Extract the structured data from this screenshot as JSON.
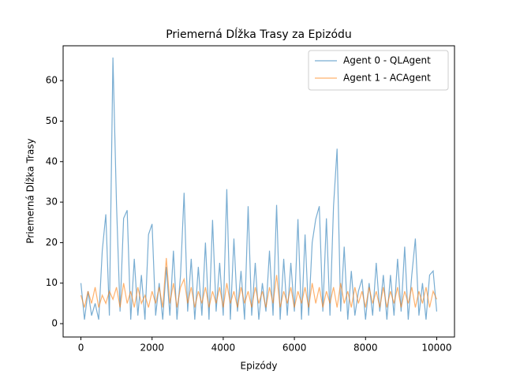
{
  "chart_data": {
    "type": "line",
    "title": "Priemerná Dĺžka Trasy za Epizódu",
    "xlabel": "Epizódy",
    "ylabel": "Priemerná Dĺžka Trasy",
    "x": [
      0,
      100,
      200,
      300,
      400,
      500,
      600,
      700,
      800,
      900,
      1000,
      1100,
      1200,
      1300,
      1400,
      1500,
      1600,
      1700,
      1800,
      1900,
      2000,
      2100,
      2200,
      2300,
      2400,
      2500,
      2600,
      2700,
      2800,
      2900,
      3000,
      3100,
      3200,
      3300,
      3400,
      3500,
      3600,
      3700,
      3800,
      3900,
      4000,
      4100,
      4200,
      4300,
      4400,
      4500,
      4600,
      4700,
      4800,
      4900,
      5000,
      5100,
      5200,
      5300,
      5400,
      5500,
      5600,
      5700,
      5800,
      5900,
      6000,
      6100,
      6200,
      6300,
      6400,
      6500,
      6600,
      6700,
      6800,
      6900,
      7000,
      7100,
      7200,
      7300,
      7400,
      7500,
      7600,
      7700,
      7800,
      7900,
      8000,
      8100,
      8200,
      8300,
      8400,
      8500,
      8600,
      8700,
      8800,
      8900,
      9000,
      9100,
      9200,
      9300,
      9400,
      9500,
      9600,
      9700,
      9800,
      9900,
      10000
    ],
    "series": [
      {
        "name": "Agent 0 - QLAgent",
        "color": "#1f77b4",
        "values": [
          10,
          1,
          8,
          2,
          5,
          1,
          18,
          27,
          2,
          65.7,
          29.5,
          3,
          26,
          28,
          1,
          16,
          2,
          12,
          1,
          22,
          24.6,
          2,
          10,
          1,
          14,
          2,
          18,
          1,
          12,
          32.3,
          3,
          16,
          1,
          14,
          2,
          20,
          1,
          25.6,
          3,
          15,
          2,
          33.2,
          1,
          21,
          3,
          13,
          1,
          29,
          2,
          15,
          1,
          10,
          3,
          18,
          2,
          29.3,
          1,
          16,
          2,
          15,
          3,
          25.8,
          1,
          22,
          2,
          20,
          25.8,
          29,
          3,
          26,
          2,
          29,
          43.2,
          3,
          19,
          1,
          13,
          2,
          8,
          11,
          1,
          10,
          2,
          15,
          3,
          12,
          1,
          12,
          2,
          16,
          3,
          19,
          1,
          12,
          21,
          2,
          10,
          1,
          12,
          13,
          3
        ]
      },
      {
        "name": "Agent 1 - ACAgent",
        "color": "#ff7f0e",
        "values": [
          7,
          4,
          8,
          5,
          9,
          4,
          7,
          5,
          8,
          6,
          9,
          4,
          10,
          5,
          8,
          4,
          9,
          5,
          7,
          4,
          8,
          5,
          9,
          4,
          16.2,
          5,
          10,
          4,
          9,
          11,
          5,
          9,
          4,
          8,
          5,
          9,
          4,
          8,
          5,
          9,
          4,
          10,
          5,
          8,
          4,
          9,
          5,
          8,
          4,
          9,
          5,
          8,
          4,
          9,
          5,
          12,
          4,
          8,
          5,
          9,
          4,
          8,
          5,
          9,
          4,
          10,
          5,
          9,
          4,
          8,
          5,
          9,
          4,
          10,
          5,
          8,
          4,
          9,
          5,
          8,
          4,
          9,
          5,
          8,
          4,
          9,
          4,
          8,
          5,
          9,
          4,
          8,
          5,
          9,
          4,
          8,
          5,
          9,
          4,
          8,
          6
        ]
      }
    ],
    "xlim": [
      -500,
      10500
    ],
    "ylim": [
      -3.3,
      68.6
    ],
    "xticks": [
      0,
      2000,
      4000,
      6000,
      8000,
      10000
    ],
    "yticks": [
      0,
      10,
      20,
      30,
      40,
      50,
      60
    ],
    "legend": "upper right"
  }
}
